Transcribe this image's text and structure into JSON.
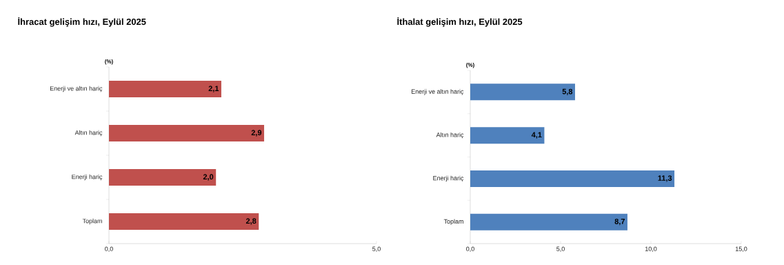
{
  "chart_data": [
    {
      "type": "bar",
      "orientation": "horizontal",
      "title": "İhracat gelişim hızı, Eylül 2025",
      "annotations": [
        "(%)"
      ],
      "categories": [
        "Enerji ve altın hariç",
        "Altın hariç",
        "Enerji hariç",
        "Toplam"
      ],
      "values": [
        2.1,
        2.9,
        2.0,
        2.8
      ],
      "value_labels": [
        "2,1",
        "2,9",
        "2,0",
        "2,8"
      ],
      "color": "#c0504d",
      "xlim": [
        0,
        5
      ],
      "xticks": [
        {
          "value": 0,
          "label": "0,0"
        },
        {
          "value": 5,
          "label": "5,0"
        }
      ],
      "grid": false
    },
    {
      "type": "bar",
      "orientation": "horizontal",
      "title": "İthalat gelişim hızı, Eylül 2025",
      "annotations": [
        "(%)"
      ],
      "categories": [
        "Enerji ve altın hariç",
        "Altın hariç",
        "Enerji hariç",
        "Toplam"
      ],
      "values": [
        5.8,
        4.1,
        11.3,
        8.7
      ],
      "value_labels": [
        "5,8",
        "4,1",
        "11,3",
        "8,7"
      ],
      "color": "#4f81bd",
      "xlim": [
        0,
        15
      ],
      "xticks": [
        {
          "value": 0,
          "label": "0,0"
        },
        {
          "value": 5,
          "label": "5,0"
        },
        {
          "value": 10,
          "label": "10,0"
        },
        {
          "value": 15,
          "label": "15,0"
        }
      ],
      "grid": false
    }
  ]
}
